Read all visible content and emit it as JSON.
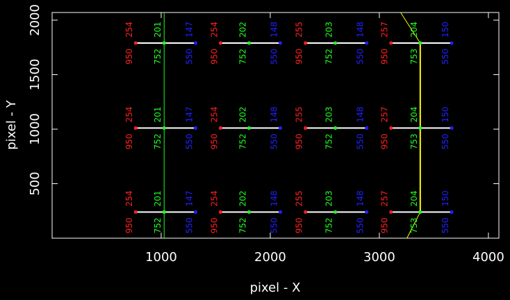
{
  "chart_data": {
    "type": "scatter",
    "xlabel": "pixel - X",
    "ylabel": "pixel - Y",
    "xlim": [
      0,
      4096
    ],
    "ylim": [
      0,
      2070
    ],
    "xticks": [
      1000,
      2000,
      3000,
      4000
    ],
    "yticks": [
      500,
      1000,
      1500,
      2000
    ],
    "series": [
      {
        "color": "#ff2020",
        "x": [
          766,
          766,
          766,
          1544,
          1544,
          1544,
          2323,
          2323,
          2323,
          3107,
          3107,
          3107
        ],
        "y": [
          1790,
          1010,
          240,
          1790,
          1010,
          240,
          1790,
          1010,
          240,
          1790,
          1010,
          240
        ],
        "labels_top": [
          254,
          254,
          254,
          254,
          254,
          254,
          255,
          255,
          255,
          257,
          257,
          257
        ],
        "labels_bottom": [
          950,
          950,
          950,
          950,
          950,
          950,
          950,
          950,
          950,
          950,
          950,
          950
        ]
      },
      {
        "color": "#20ff20",
        "x": [
          1027,
          1027,
          1027,
          1806,
          1806,
          1806,
          2597,
          2597,
          2597,
          3375,
          3375,
          3375
        ],
        "y": [
          1790,
          1010,
          240,
          1790,
          1010,
          240,
          1790,
          1010,
          240,
          1790,
          1010,
          240
        ],
        "labels_top": [
          201,
          201,
          201,
          202,
          202,
          202,
          203,
          203,
          203,
          204,
          204,
          204
        ],
        "labels_bottom": [
          752,
          752,
          752,
          752,
          752,
          752,
          752,
          752,
          752,
          753,
          753,
          753
        ]
      },
      {
        "color": "#2020ff",
        "x": [
          1315,
          1315,
          1315,
          2093,
          2093,
          2093,
          2884,
          2884,
          2884,
          3664,
          3664,
          3664
        ],
        "y": [
          1790,
          1010,
          240,
          1790,
          1010,
          240,
          1790,
          1010,
          240,
          1790,
          1010,
          240
        ],
        "labels_top": [
          147,
          147,
          147,
          148,
          148,
          148,
          148,
          148,
          148,
          150,
          150,
          150
        ],
        "labels_bottom": [
          550,
          550,
          550,
          550,
          550,
          550,
          550,
          550,
          550,
          550,
          550,
          550
        ]
      }
    ],
    "lines": [
      {
        "color": "#20ff20",
        "width": 1,
        "x": [
          1027,
          1027
        ],
        "y": [
          0,
          2070
        ]
      },
      {
        "color": "#ffff00",
        "width": 2,
        "x": [
          3375,
          3375
        ],
        "y": [
          240,
          1790
        ]
      },
      {
        "color": "#ffff00",
        "width": 1,
        "x": [
          3195,
          3375
        ],
        "y": [
          2070,
          1790
        ]
      },
      {
        "color": "#ffff00",
        "width": 1,
        "x": [
          3253,
          3375
        ],
        "y": [
          0,
          240
        ]
      }
    ]
  }
}
